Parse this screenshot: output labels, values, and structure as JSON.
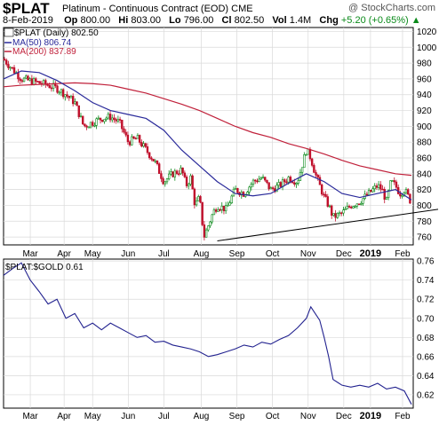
{
  "header": {
    "symbol": "$PLAT",
    "name": "Platinum - Continuous Contract (EOD)",
    "exchange": "CME",
    "watermark": "@ StockCharts.com",
    "date": "8-Feb-2019",
    "open_label": "Op",
    "open": "800.00",
    "high_label": "Hi",
    "high": "803.00",
    "low_label": "Lo",
    "low": "796.00",
    "close_label": "Cl",
    "close": "802.50",
    "vol_label": "Vol",
    "vol": "1.4M",
    "chg_label": "Chg",
    "chg": "+5.20 (+0.65%)",
    "chg_arrow": "▲"
  },
  "legend": {
    "price": "$PLAT (Daily) 802.50",
    "ma50": "MA(50) 806.74",
    "ma200": "MA(200) 837.89",
    "ratio": "$PLAT:$GOLD 0.61"
  },
  "colors": {
    "up": "#0a8a1a",
    "down": "#c0102c",
    "ma50": "#2a2a9a",
    "ma200": "#c0203a",
    "ratio": "#22228f",
    "grid": "#d9d9d9",
    "trend": "#000000"
  },
  "chart_data": [
    {
      "type": "candlestick",
      "title": "$PLAT (Daily) 802.50",
      "y_axis_ticks": [
        1020,
        1000,
        980,
        960,
        940,
        920,
        900,
        880,
        860,
        840,
        820,
        800,
        780,
        760
      ],
      "ylim": [
        750,
        1025
      ],
      "x_ticks": [
        "Mar",
        "Apr",
        "May",
        "Jun",
        "Jul",
        "Aug",
        "Sep",
        "Oct",
        "Nov",
        "Dec",
        "2019",
        "Feb"
      ],
      "grid": true,
      "price_series": {
        "name": "$PLAT",
        "x": [
          0,
          20,
          40,
          50,
          60,
          70,
          80,
          90,
          100,
          110,
          120,
          130,
          140,
          150,
          160,
          170,
          180,
          190,
          200,
          205,
          210,
          215,
          220,
          225,
          230,
          235,
          240,
          250,
          260,
          270,
          280,
          290,
          300,
          310,
          320,
          330,
          340,
          345,
          350,
          355,
          360,
          365,
          370,
          380,
          390,
          400,
          410,
          420,
          425,
          430,
          435,
          440,
          445,
          450,
          455,
          458
        ],
        "y": [
          985,
          960,
          955,
          952,
          948,
          940,
          930,
          900,
          905,
          910,
          912,
          905,
          880,
          885,
          870,
          855,
          830,
          840,
          845,
          825,
          835,
          800,
          810,
          760,
          775,
          790,
          800,
          795,
          820,
          815,
          830,
          835,
          820,
          825,
          835,
          830,
          870,
          860,
          840,
          825,
          810,
          800,
          785,
          790,
          800,
          805,
          815,
          825,
          820,
          805,
          830,
          825,
          815,
          820,
          810,
          802.5
        ]
      },
      "series": [
        {
          "name": "MA(50) 806.74",
          "x": [
            0,
            20,
            40,
            60,
            80,
            100,
            120,
            140,
            160,
            180,
            200,
            220,
            240,
            260,
            280,
            300,
            320,
            340,
            360,
            380,
            400,
            420,
            440,
            458
          ],
          "y": [
            960,
            970,
            968,
            958,
            945,
            930,
            920,
            915,
            910,
            895,
            870,
            850,
            830,
            815,
            812,
            815,
            828,
            840,
            830,
            815,
            810,
            815,
            820,
            807
          ]
        },
        {
          "name": "MA(200) 837.89",
          "x": [
            0,
            20,
            40,
            60,
            80,
            100,
            120,
            140,
            160,
            180,
            200,
            220,
            240,
            260,
            280,
            300,
            320,
            340,
            360,
            380,
            400,
            420,
            440,
            458
          ],
          "y": [
            950,
            952,
            953,
            954,
            955,
            954,
            952,
            947,
            942,
            935,
            928,
            920,
            910,
            900,
            892,
            886,
            878,
            872,
            865,
            857,
            850,
            845,
            840,
            838
          ]
        },
        {
          "name": "support trendline",
          "x": [
            240,
            490
          ],
          "y": [
            755,
            795
          ]
        }
      ]
    },
    {
      "type": "line",
      "title": "$PLAT:$GOLD 0.61",
      "y_axis_ticks": [
        0.76,
        0.74,
        0.72,
        0.7,
        0.68,
        0.66,
        0.64,
        0.62
      ],
      "ylim": [
        0.606,
        0.762
      ],
      "x_ticks": [
        "Mar",
        "Apr",
        "May",
        "Jun",
        "Jul",
        "Aug",
        "Sep",
        "Oct",
        "Nov",
        "Dec",
        "2019",
        "Feb"
      ],
      "grid": true,
      "series": [
        {
          "name": "$PLAT:$GOLD",
          "x": [
            0,
            10,
            20,
            30,
            40,
            50,
            60,
            70,
            80,
            90,
            100,
            110,
            120,
            130,
            140,
            150,
            160,
            170,
            180,
            190,
            200,
            210,
            220,
            230,
            240,
            250,
            260,
            270,
            280,
            290,
            300,
            310,
            320,
            330,
            340,
            345,
            350,
            355,
            360,
            365,
            370,
            380,
            390,
            400,
            410,
            420,
            430,
            440,
            450,
            458
          ],
          "y": [
            0.745,
            0.752,
            0.758,
            0.74,
            0.728,
            0.715,
            0.72,
            0.7,
            0.705,
            0.69,
            0.695,
            0.688,
            0.695,
            0.69,
            0.685,
            0.68,
            0.682,
            0.675,
            0.676,
            0.672,
            0.67,
            0.668,
            0.665,
            0.66,
            0.662,
            0.665,
            0.668,
            0.672,
            0.67,
            0.675,
            0.673,
            0.678,
            0.682,
            0.69,
            0.7,
            0.712,
            0.705,
            0.698,
            0.68,
            0.66,
            0.636,
            0.63,
            0.628,
            0.63,
            0.628,
            0.632,
            0.626,
            0.628,
            0.624,
            0.61
          ]
        }
      ]
    }
  ]
}
